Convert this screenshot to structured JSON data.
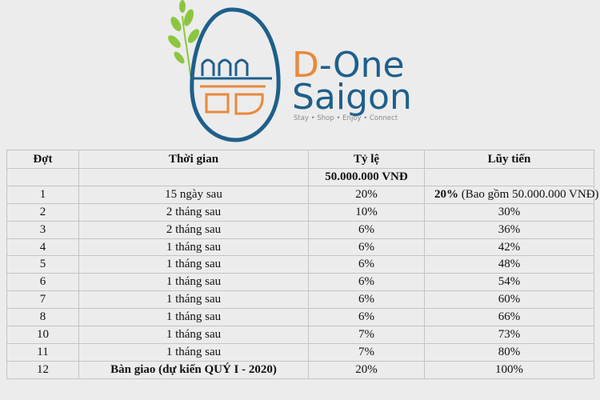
{
  "logo": {
    "name_first": "D",
    "name_rest": "-One",
    "name_bottom": "Saigon",
    "tagline": "Stay • Shop • Enjoy • Connect"
  },
  "table": {
    "header": [
      "Đợt",
      "Thời gian",
      "Tỷ lệ",
      "Lũy tiến"
    ],
    "deposit": "50.000.000 VNĐ",
    "first_row": {
      "period": "1",
      "time": "15 ngày sau",
      "rate": "20%",
      "cumulative_bold": "20%",
      "cumulative_note": "(Bao gồm 50.000.000 VNĐ)"
    },
    "rows": [
      [
        "2",
        "2 tháng sau",
        "10%",
        "30%"
      ],
      [
        "3",
        "2 tháng sau",
        "6%",
        "36%"
      ],
      [
        "4",
        "1 tháng sau",
        "6%",
        "42%"
      ],
      [
        "5",
        "1 tháng sau",
        "6%",
        "48%"
      ],
      [
        "6",
        "1 tháng sau",
        "6%",
        "54%"
      ],
      [
        "7",
        "1 tháng sau",
        "6%",
        "60%"
      ],
      [
        "8",
        "1 tháng sau",
        "6%",
        "66%"
      ],
      [
        "10",
        "1 tháng sau",
        "7%",
        "73%"
      ],
      [
        "11",
        "1 tháng sau",
        "7%",
        "80%"
      ]
    ],
    "last_row": {
      "period": "12",
      "time": "Bàn giao (dự kiến QUÝ I - 2020)",
      "rate": "20%",
      "cumulative": "100%"
    }
  }
}
